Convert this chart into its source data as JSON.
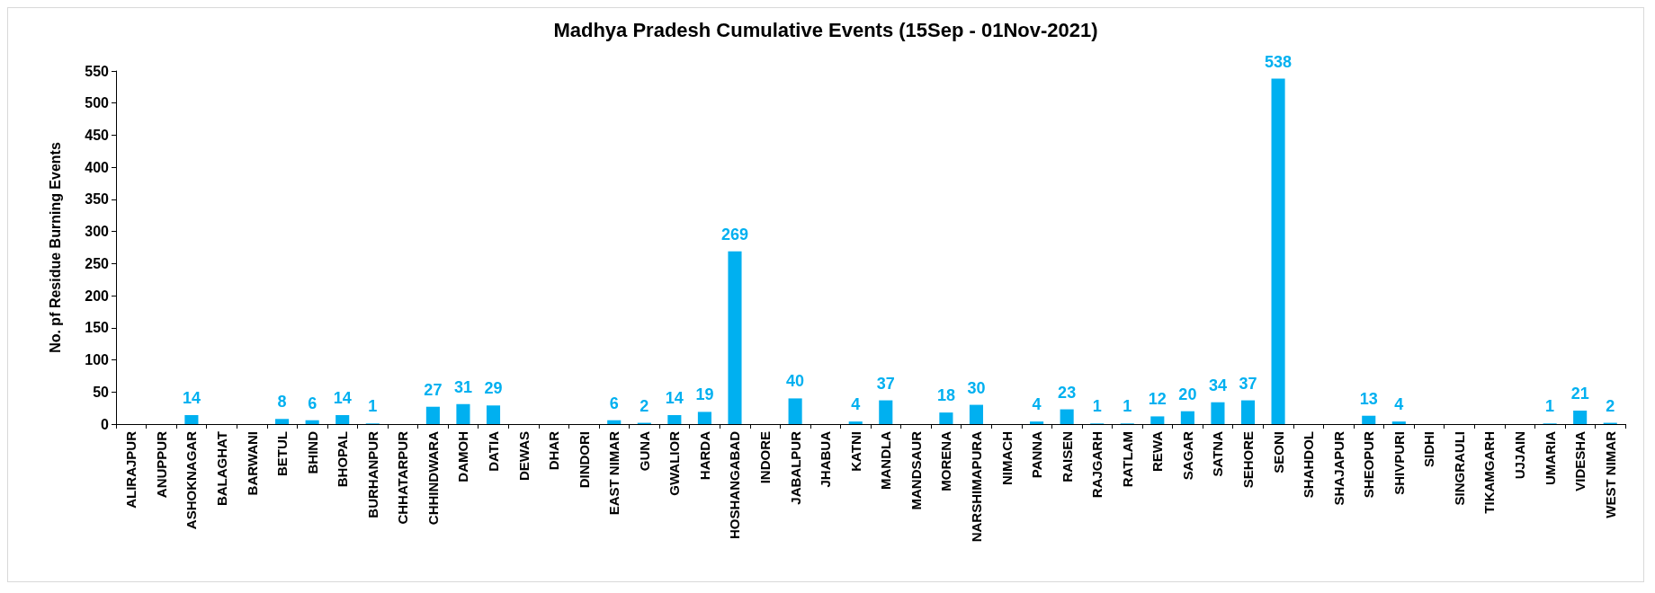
{
  "chart_data": {
    "type": "bar",
    "title": "Madhya Pradesh Cumulative Events (15Sep - 01Nov-2021)",
    "ylabel": "No. pf Residue Burning Events",
    "categories": [
      "ALIRAJPUR",
      "ANUPPUR",
      "ASHOKNAGAR",
      "BALAGHAT",
      "BARWANI",
      "BETUL",
      "BHIND",
      "BHOPAL",
      "BURHANPUR",
      "CHHATARPUR",
      "CHHINDWARA",
      "DAMOH",
      "DATIA",
      "DEWAS",
      "DHAR",
      "DINDORI",
      "EAST NIMAR",
      "GUNA",
      "GWALIOR",
      "HARDA",
      "HOSHANGABAD",
      "INDORE",
      "JABALPUR",
      "JHABUA",
      "KATNI",
      "MANDLA",
      "MANDSAUR",
      "MORENA",
      "NARSHIMAPURA",
      "NIMACH",
      "PANNA",
      "RAISEN",
      "RAJGARH",
      "RATLAM",
      "REWA",
      "SAGAR",
      "SATNA",
      "SEHORE",
      "SEONI",
      "SHAHDOL",
      "SHAJAPUR",
      "SHEOPUR",
      "SHIVPURI",
      "SIDHI",
      "SINGRAULI",
      "TIKAMGARH",
      "UJJAIN",
      "UMARIA",
      "VIDESHA",
      "WEST NIMAR"
    ],
    "values": [
      0,
      0,
      14,
      0,
      0,
      8,
      6,
      14,
      1,
      0,
      27,
      31,
      29,
      0,
      0,
      0,
      6,
      2,
      14,
      19,
      269,
      0,
      40,
      0,
      4,
      37,
      0,
      18,
      30,
      0,
      4,
      23,
      1,
      1,
      12,
      20,
      34,
      37,
      538,
      0,
      0,
      13,
      4,
      0,
      0,
      0,
      0,
      1,
      21,
      2
    ],
    "value_labels": [
      null,
      null,
      "14",
      null,
      null,
      "8",
      "6",
      "14",
      "1",
      null,
      "27",
      "31",
      "29",
      null,
      null,
      null,
      "6",
      "2",
      "14",
      "19",
      "269",
      null,
      "40",
      null,
      "4",
      "37",
      null,
      "18",
      "30",
      null,
      "4",
      "23",
      "1",
      "1",
      "12",
      "20",
      "34",
      "37",
      "538",
      null,
      null,
      "13",
      "4",
      null,
      null,
      null,
      null,
      "1",
      "21",
      "2"
    ],
    "color": "#00b0f0",
    "ylim": [
      0,
      550
    ],
    "yticks": [
      0,
      50,
      100,
      150,
      200,
      250,
      300,
      350,
      400,
      450,
      500,
      550
    ],
    "grid": false
  }
}
